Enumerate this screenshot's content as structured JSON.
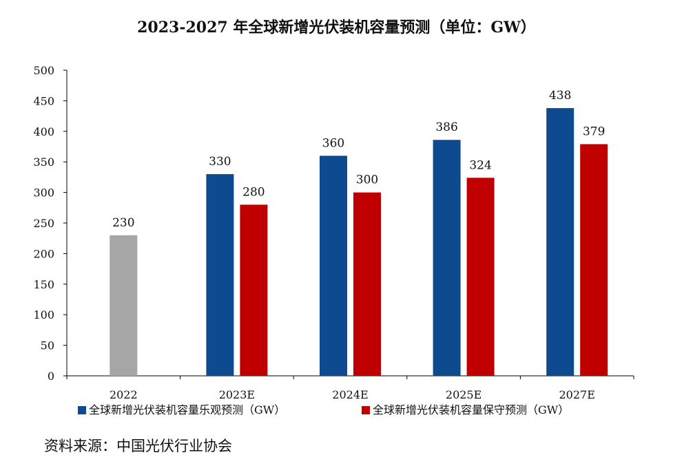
{
  "chart_data": {
    "type": "bar",
    "title": "2023-2027 年全球新增光伏装机容量预测（单位：GW）",
    "xlabel": "",
    "ylabel": "",
    "ylim": [
      0,
      500
    ],
    "yticks": [
      0,
      50,
      100,
      150,
      200,
      250,
      300,
      350,
      400,
      450,
      500
    ],
    "categories": [
      "2022",
      "2023E",
      "2024E",
      "2025E",
      "2027E"
    ],
    "historical": {
      "category": "2022",
      "value": 230,
      "color": "#a6a6a6"
    },
    "series": [
      {
        "name": "全球新增光伏装机容量乐观预测（GW）",
        "color": "#0d4a8f",
        "values": [
          null,
          330,
          360,
          386,
          438
        ]
      },
      {
        "name": "全球新增光伏装机容量保守预测（GW）",
        "color": "#c00000",
        "values": [
          null,
          280,
          300,
          324,
          379
        ]
      }
    ],
    "legend_position": "bottom"
  },
  "source": "资料来源：中国光伏行业协会"
}
